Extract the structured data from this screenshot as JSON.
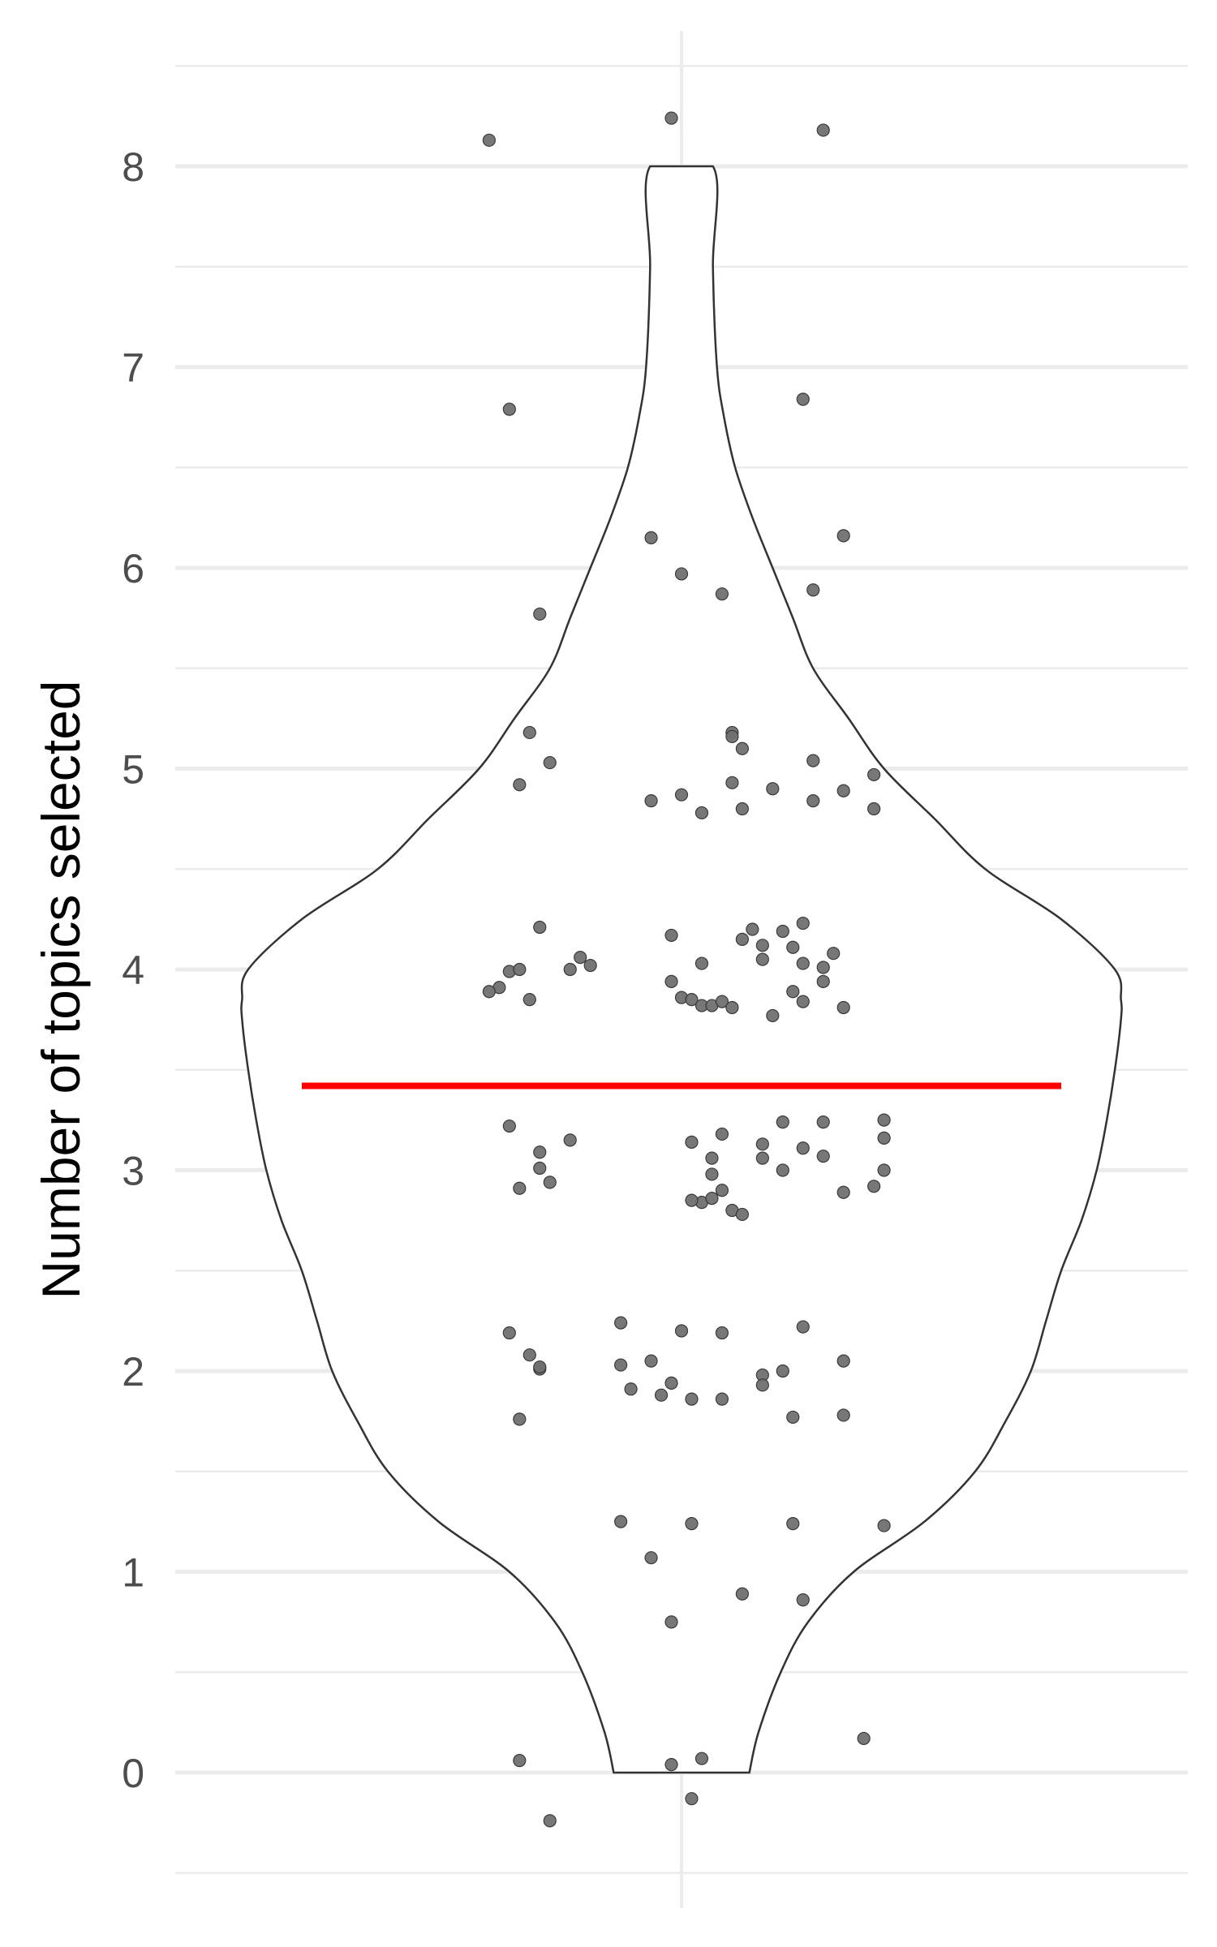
{
  "chart_data": {
    "type": "violin",
    "title": "",
    "xlabel": "",
    "ylabel": "Number of topics selected",
    "ylim": [
      -0.5,
      8.5
    ],
    "y_ticks": [
      0,
      1,
      2,
      3,
      4,
      5,
      6,
      7,
      8
    ],
    "y_minor_ticks": [
      -0.5,
      0.5,
      1.5,
      2.5,
      3.5,
      4.5,
      5.5,
      6.5,
      7.5,
      8.5
    ],
    "x_range": [
      0,
      1
    ],
    "violin": {
      "y_min": 0,
      "y_max": 8,
      "center_x": 0.5,
      "half_width_profile": [
        [
          0,
          0.067
        ],
        [
          0.2,
          0.076
        ],
        [
          0.5,
          0.098
        ],
        [
          0.75,
          0.125
        ],
        [
          1,
          0.17
        ],
        [
          1.25,
          0.24
        ],
        [
          1.5,
          0.29
        ],
        [
          1.75,
          0.32
        ],
        [
          2,
          0.345
        ],
        [
          2.25,
          0.36
        ],
        [
          2.5,
          0.375
        ],
        [
          2.75,
          0.395
        ],
        [
          3,
          0.41
        ],
        [
          3.25,
          0.42
        ],
        [
          3.5,
          0.428
        ],
        [
          3.75,
          0.434
        ],
        [
          3.85,
          0.434
        ],
        [
          4,
          0.428
        ],
        [
          4.25,
          0.375
        ],
        [
          4.5,
          0.3
        ],
        [
          4.75,
          0.25
        ],
        [
          5,
          0.2
        ],
        [
          5.25,
          0.165
        ],
        [
          5.5,
          0.13
        ],
        [
          5.75,
          0.11
        ],
        [
          6,
          0.09
        ],
        [
          6.25,
          0.07
        ],
        [
          6.5,
          0.053
        ],
        [
          6.75,
          0.042
        ],
        [
          7,
          0.035
        ],
        [
          7.5,
          0.031
        ],
        [
          8,
          0.031
        ]
      ],
      "stroke": "#333333",
      "fill": "#ffffff"
    },
    "mean_line": {
      "y": 3.42,
      "x_start": 0.125,
      "x_end": 0.875,
      "color": "#ff0000"
    },
    "points_color": "#707070",
    "points": [
      [
        0.31,
        8.13
      ],
      [
        0.49,
        8.24
      ],
      [
        0.64,
        8.18
      ],
      [
        0.33,
        6.79
      ],
      [
        0.62,
        6.84
      ],
      [
        0.47,
        6.15
      ],
      [
        0.5,
        5.97
      ],
      [
        0.54,
        5.87
      ],
      [
        0.66,
        6.16
      ],
      [
        0.63,
        5.89
      ],
      [
        0.36,
        5.77
      ],
      [
        0.35,
        5.18
      ],
      [
        0.37,
        5.03
      ],
      [
        0.34,
        4.92
      ],
      [
        0.47,
        4.84
      ],
      [
        0.5,
        4.87
      ],
      [
        0.52,
        4.78
      ],
      [
        0.55,
        5.18
      ],
      [
        0.55,
        5.16
      ],
      [
        0.56,
        5.1
      ],
      [
        0.55,
        4.93
      ],
      [
        0.56,
        4.8
      ],
      [
        0.59,
        4.9
      ],
      [
        0.63,
        5.04
      ],
      [
        0.63,
        4.84
      ],
      [
        0.66,
        4.89
      ],
      [
        0.69,
        4.97
      ],
      [
        0.69,
        4.8
      ],
      [
        0.36,
        4.21
      ],
      [
        0.39,
        4.0
      ],
      [
        0.4,
        4.06
      ],
      [
        0.41,
        4.02
      ],
      [
        0.33,
        3.99
      ],
      [
        0.34,
        4.0
      ],
      [
        0.32,
        3.91
      ],
      [
        0.31,
        3.89
      ],
      [
        0.35,
        3.85
      ],
      [
        0.49,
        4.17
      ],
      [
        0.52,
        4.03
      ],
      [
        0.49,
        3.94
      ],
      [
        0.5,
        3.86
      ],
      [
        0.51,
        3.85
      ],
      [
        0.52,
        3.82
      ],
      [
        0.53,
        3.82
      ],
      [
        0.54,
        3.84
      ],
      [
        0.55,
        3.81
      ],
      [
        0.56,
        4.15
      ],
      [
        0.57,
        4.2
      ],
      [
        0.58,
        4.12
      ],
      [
        0.58,
        4.05
      ],
      [
        0.6,
        4.19
      ],
      [
        0.61,
        4.11
      ],
      [
        0.62,
        4.23
      ],
      [
        0.62,
        4.03
      ],
      [
        0.64,
        4.01
      ],
      [
        0.64,
        3.94
      ],
      [
        0.65,
        4.08
      ],
      [
        0.61,
        3.89
      ],
      [
        0.62,
        3.84
      ],
      [
        0.59,
        3.77
      ],
      [
        0.66,
        3.81
      ],
      [
        0.33,
        3.22
      ],
      [
        0.36,
        3.09
      ],
      [
        0.36,
        3.01
      ],
      [
        0.37,
        2.94
      ],
      [
        0.34,
        2.91
      ],
      [
        0.39,
        3.15
      ],
      [
        0.51,
        3.14
      ],
      [
        0.53,
        3.06
      ],
      [
        0.53,
        2.98
      ],
      [
        0.52,
        2.84
      ],
      [
        0.51,
        2.85
      ],
      [
        0.54,
        3.18
      ],
      [
        0.54,
        2.9
      ],
      [
        0.53,
        2.86
      ],
      [
        0.55,
        2.8
      ],
      [
        0.56,
        2.78
      ],
      [
        0.58,
        3.13
      ],
      [
        0.58,
        3.06
      ],
      [
        0.6,
        3.0
      ],
      [
        0.6,
        3.24
      ],
      [
        0.62,
        3.11
      ],
      [
        0.64,
        3.24
      ],
      [
        0.64,
        3.07
      ],
      [
        0.66,
        2.89
      ],
      [
        0.7,
        3.25
      ],
      [
        0.7,
        3.16
      ],
      [
        0.7,
        3.0
      ],
      [
        0.69,
        2.92
      ],
      [
        0.33,
        2.19
      ],
      [
        0.35,
        2.08
      ],
      [
        0.36,
        2.01
      ],
      [
        0.36,
        2.02
      ],
      [
        0.34,
        1.76
      ],
      [
        0.44,
        2.24
      ],
      [
        0.44,
        2.03
      ],
      [
        0.45,
        1.91
      ],
      [
        0.47,
        2.05
      ],
      [
        0.48,
        1.88
      ],
      [
        0.49,
        1.94
      ],
      [
        0.5,
        2.2
      ],
      [
        0.51,
        1.86
      ],
      [
        0.54,
        2.19
      ],
      [
        0.54,
        1.86
      ],
      [
        0.58,
        1.98
      ],
      [
        0.58,
        1.93
      ],
      [
        0.6,
        2.0
      ],
      [
        0.62,
        2.22
      ],
      [
        0.61,
        1.77
      ],
      [
        0.66,
        2.05
      ],
      [
        0.66,
        1.78
      ],
      [
        0.44,
        1.25
      ],
      [
        0.47,
        1.07
      ],
      [
        0.51,
        1.24
      ],
      [
        0.61,
        1.24
      ],
      [
        0.7,
        1.23
      ],
      [
        0.56,
        0.89
      ],
      [
        0.62,
        0.86
      ],
      [
        0.49,
        0.75
      ],
      [
        0.34,
        0.06
      ],
      [
        0.49,
        0.04
      ],
      [
        0.52,
        0.07
      ],
      [
        0.68,
        0.17
      ],
      [
        0.37,
        -0.24
      ],
      [
        0.51,
        -0.13
      ]
    ]
  }
}
